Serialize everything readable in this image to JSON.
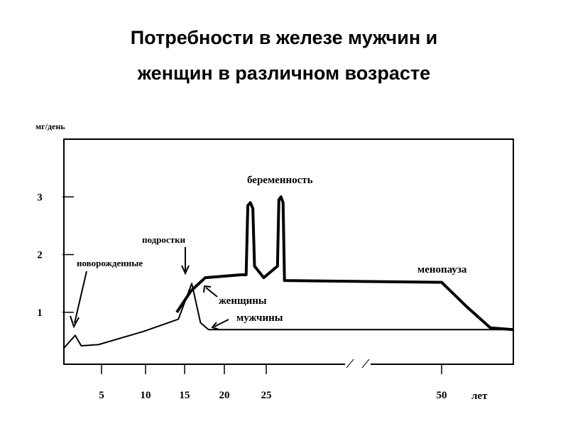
{
  "chart_data": {
    "type": "line",
    "title_lines": [
      "Потребности в железе мужчин и",
      "женщин в различном возрасте"
    ],
    "y_label": "мг/день",
    "x_label": "лет",
    "xlim": [
      0,
      60
    ],
    "xticks": [
      5,
      10,
      15,
      20,
      25,
      50
    ],
    "ylim": [
      0.1,
      4.0
    ],
    "yticks": [
      1,
      2,
      3
    ],
    "series": [
      {
        "name": "женщины",
        "color": "#000000",
        "x": [
          14,
          15.8,
          17.6,
          22.0,
          22.6,
          22.8,
          23.1,
          23.4,
          23.6,
          24.7,
          26.6,
          26.8,
          27.1,
          27.4,
          27.6,
          50,
          53.3,
          56.8,
          60
        ],
        "values": [
          1.0,
          1.37,
          1.6,
          1.65,
          1.65,
          2.85,
          2.9,
          2.8,
          1.8,
          1.6,
          1.8,
          2.95,
          3.0,
          2.9,
          1.55,
          1.52,
          1.12,
          0.73,
          0.7
        ]
      },
      {
        "name": "мужчины",
        "color": "#000000",
        "x": [
          0,
          1.5,
          2.3,
          4.6,
          9.8,
          14.2,
          15.9,
          17,
          18,
          60
        ],
        "values": [
          0.38,
          0.6,
          0.42,
          0.44,
          0.67,
          0.88,
          1.5,
          0.82,
          0.7,
          0.7
        ]
      }
    ],
    "annotations": [
      "беременность",
      "подростки",
      "новорожденные",
      "менопауза"
    ]
  }
}
